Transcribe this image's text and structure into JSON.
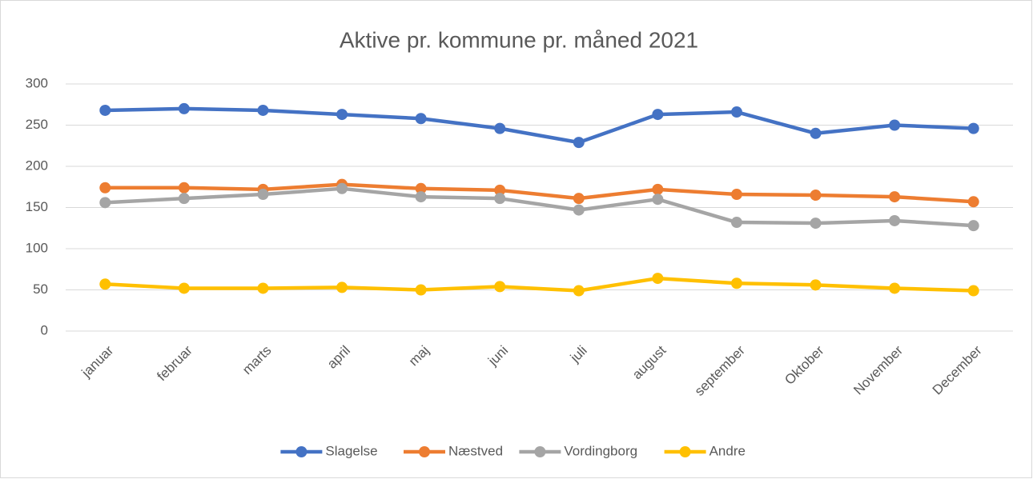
{
  "chart_data": {
    "type": "line",
    "title": "Aktive pr. kommune pr. måned 2021",
    "categories": [
      "januar",
      "februar",
      "marts",
      "april",
      "maj",
      "juni",
      "juli",
      "august",
      "september",
      "Oktober",
      "November",
      "December"
    ],
    "series": [
      {
        "name": "Slagelse",
        "color": "#4472c4",
        "values": [
          268,
          270,
          268,
          263,
          258,
          246,
          229,
          263,
          266,
          240,
          250,
          246
        ]
      },
      {
        "name": "Næstved",
        "color": "#ed7d31",
        "values": [
          174,
          174,
          172,
          178,
          173,
          171,
          161,
          172,
          166,
          165,
          163,
          157
        ]
      },
      {
        "name": "Vordingborg",
        "color": "#a5a5a5",
        "values": [
          156,
          161,
          166,
          173,
          163,
          161,
          147,
          160,
          132,
          131,
          134,
          128
        ]
      },
      {
        "name": "Andre",
        "color": "#ffc000",
        "values": [
          57,
          52,
          52,
          53,
          50,
          54,
          49,
          64,
          58,
          56,
          52,
          49
        ]
      }
    ],
    "ylim": [
      0,
      300
    ],
    "yticks": [
      0,
      50,
      100,
      150,
      200,
      250,
      300
    ],
    "grid": true,
    "legend": "bottom"
  }
}
